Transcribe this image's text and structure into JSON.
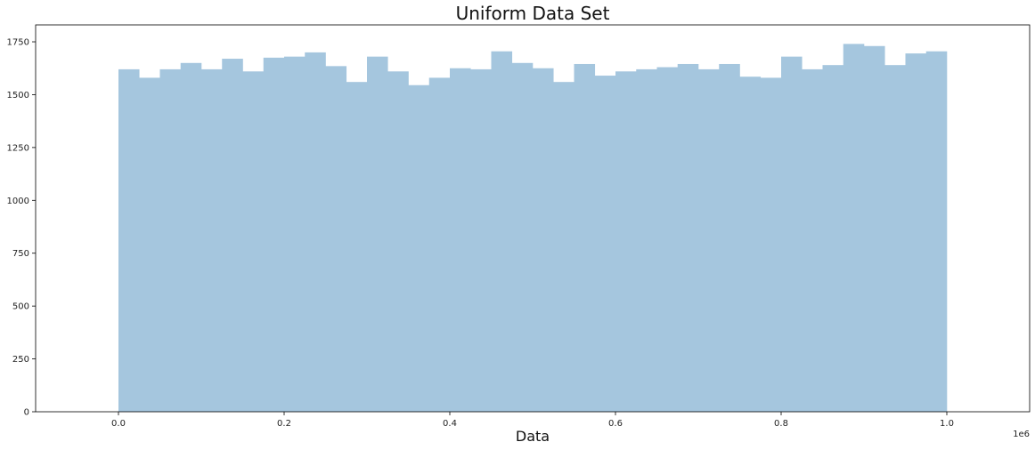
{
  "chart_data": {
    "type": "bar",
    "title": "Uniform Data Set",
    "xlabel": "Data",
    "ylabel": "",
    "x_offset_label": "1e6",
    "xlim": [
      -0.1,
      1.1
    ],
    "ylim": [
      0,
      1830
    ],
    "xticks": [
      {
        "value": 0.0,
        "label": "0.0"
      },
      {
        "value": 0.2,
        "label": "0.2"
      },
      {
        "value": 0.4,
        "label": "0.4"
      },
      {
        "value": 0.6,
        "label": "0.6"
      },
      {
        "value": 0.8,
        "label": "0.8"
      },
      {
        "value": 1.0,
        "label": "1.0"
      }
    ],
    "yticks": [
      {
        "value": 0,
        "label": "0"
      },
      {
        "value": 250,
        "label": "250"
      },
      {
        "value": 500,
        "label": "500"
      },
      {
        "value": 750,
        "label": "750"
      },
      {
        "value": 1000,
        "label": "1000"
      },
      {
        "value": 1250,
        "label": "1250"
      },
      {
        "value": 1500,
        "label": "1500"
      },
      {
        "value": 1750,
        "label": "1750"
      }
    ],
    "bin_range": [
      0.0,
      1.0
    ],
    "values": [
      1620,
      1580,
      1620,
      1650,
      1620,
      1670,
      1610,
      1675,
      1680,
      1700,
      1635,
      1560,
      1680,
      1610,
      1545,
      1580,
      1625,
      1620,
      1705,
      1650,
      1625,
      1560,
      1645,
      1590,
      1610,
      1620,
      1630,
      1645,
      1620,
      1645,
      1585,
      1580,
      1680,
      1620,
      1640,
      1740,
      1730,
      1640,
      1695,
      1705
    ],
    "bar_color": "#a5c6de",
    "grid": false
  }
}
